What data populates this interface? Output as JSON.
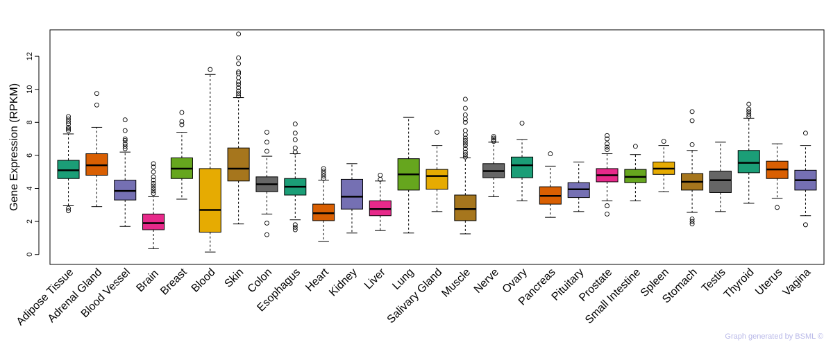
{
  "chart_data": {
    "type": "box",
    "title": "",
    "xlabel": "",
    "ylabel": "Gene Expression (RPKM)",
    "ylim": [
      -0.6,
      13.6
    ],
    "yticks": [
      0,
      2,
      4,
      6,
      8,
      10,
      12
    ],
    "highlight": "Brain",
    "highlight_color": "#ff0000",
    "credit": "Graph generated by BSML ©",
    "categories": [
      "Adipose Tissue",
      "Adrenal Gland",
      "Blood Vessel",
      "Brain",
      "Breast",
      "Blood",
      "Skin",
      "Colon",
      "Esophagus",
      "Heart",
      "Kidney",
      "Liver",
      "Lung",
      "Salivary Gland",
      "Muscle",
      "Nerve",
      "Ovary",
      "Pancreas",
      "Pituitary",
      "Prostate",
      "Small Intestine",
      "Spleen",
      "Stomach",
      "Testis",
      "Thyroid",
      "Uterus",
      "Vagina"
    ],
    "colors": [
      "#1b9e77",
      "#d95f02",
      "#7570b3",
      "#e7298a",
      "#66a61e",
      "#e6ab02",
      "#a6761d",
      "#666666",
      "#1b9e77",
      "#d95f02",
      "#7570b3",
      "#e7298a",
      "#66a61e",
      "#e6ab02",
      "#a6761d",
      "#666666",
      "#1b9e77",
      "#d95f02",
      "#7570b3",
      "#e7298a",
      "#66a61e",
      "#e6ab02",
      "#a6761d",
      "#666666",
      "#1b9e77",
      "#d95f02",
      "#7570b3"
    ],
    "boxes": [
      {
        "whisker_low": 2.95,
        "q1": 4.6,
        "median": 5.1,
        "q3": 5.7,
        "whisker_high": 7.3,
        "outliers": [
          2.65,
          2.8,
          7.5,
          7.6,
          7.7,
          7.9,
          8.05,
          8.2,
          8.35
        ]
      },
      {
        "whisker_low": 2.9,
        "q1": 4.8,
        "median": 5.4,
        "q3": 6.1,
        "whisker_high": 7.7,
        "outliers": [
          9.05,
          9.75
        ]
      },
      {
        "whisker_low": 1.7,
        "q1": 3.3,
        "median": 3.85,
        "q3": 4.5,
        "whisker_high": 6.2,
        "outliers": [
          6.4,
          6.55,
          6.7,
          6.9,
          7.0,
          7.5,
          8.15
        ]
      },
      {
        "whisker_low": 0.35,
        "q1": 1.5,
        "median": 1.9,
        "q3": 2.45,
        "whisker_high": 3.5,
        "outliers": [
          3.7,
          3.85,
          4.0,
          4.15,
          4.3,
          4.5,
          4.7,
          5.0,
          5.3,
          5.5
        ]
      },
      {
        "whisker_low": 3.35,
        "q1": 4.6,
        "median": 5.2,
        "q3": 5.85,
        "whisker_high": 7.4,
        "outliers": [
          7.85,
          8.05,
          8.6
        ]
      },
      {
        "whisker_low": 0.15,
        "q1": 1.35,
        "median": 2.7,
        "q3": 5.2,
        "whisker_high": 10.9,
        "outliers": [
          11.2
        ]
      },
      {
        "whisker_low": 1.85,
        "q1": 4.45,
        "median": 5.2,
        "q3": 6.45,
        "whisker_high": 9.5,
        "outliers": [
          9.6,
          9.75,
          9.9,
          10.1,
          10.3,
          10.45,
          10.7,
          10.95,
          11.05,
          11.55,
          11.9,
          13.35
        ]
      },
      {
        "whisker_low": 2.45,
        "q1": 3.8,
        "median": 4.25,
        "q3": 4.7,
        "whisker_high": 5.95,
        "outliers": [
          1.2,
          1.9,
          6.25,
          6.8,
          7.4
        ]
      },
      {
        "whisker_low": 2.1,
        "q1": 3.6,
        "median": 4.1,
        "q3": 4.6,
        "whisker_high": 6.1,
        "outliers": [
          1.5,
          1.65,
          1.8,
          6.2,
          6.45,
          6.95,
          7.35,
          7.9
        ]
      },
      {
        "whisker_low": 0.8,
        "q1": 2.05,
        "median": 2.5,
        "q3": 3.05,
        "whisker_high": 4.5,
        "outliers": [
          4.6,
          4.75,
          4.9,
          5.05,
          5.2
        ]
      },
      {
        "whisker_low": 1.3,
        "q1": 2.75,
        "median": 3.5,
        "q3": 4.55,
        "whisker_high": 5.5,
        "outliers": []
      },
      {
        "whisker_low": 1.45,
        "q1": 2.35,
        "median": 2.75,
        "q3": 3.25,
        "whisker_high": 4.45,
        "outliers": [
          4.55,
          4.8
        ]
      },
      {
        "whisker_low": 1.3,
        "q1": 3.9,
        "median": 4.85,
        "q3": 5.8,
        "whisker_high": 8.3,
        "outliers": []
      },
      {
        "whisker_low": 2.6,
        "q1": 3.95,
        "median": 4.75,
        "q3": 5.15,
        "whisker_high": 6.6,
        "outliers": [
          7.4
        ]
      },
      {
        "whisker_low": 1.25,
        "q1": 2.05,
        "median": 2.75,
        "q3": 3.6,
        "whisker_high": 5.85,
        "outliers": [
          5.9,
          6.05,
          6.2,
          6.4,
          6.6,
          6.75,
          6.9,
          7.05,
          7.25,
          7.5,
          8.0,
          8.2,
          8.45,
          8.85,
          9.4
        ]
      },
      {
        "whisker_low": 3.5,
        "q1": 4.65,
        "median": 5.05,
        "q3": 5.5,
        "whisker_high": 6.8,
        "outliers": [
          6.85,
          6.95,
          7.05,
          7.15
        ]
      },
      {
        "whisker_low": 3.25,
        "q1": 4.65,
        "median": 5.4,
        "q3": 5.9,
        "whisker_high": 6.95,
        "outliers": [
          7.95
        ]
      },
      {
        "whisker_low": 2.25,
        "q1": 3.05,
        "median": 3.55,
        "q3": 4.1,
        "whisker_high": 5.35,
        "outliers": [
          6.1
        ]
      },
      {
        "whisker_low": 2.6,
        "q1": 3.45,
        "median": 3.95,
        "q3": 4.35,
        "whisker_high": 5.6,
        "outliers": []
      },
      {
        "whisker_low": 3.25,
        "q1": 4.4,
        "median": 4.8,
        "q3": 5.2,
        "whisker_high": 6.1,
        "outliers": [
          2.45,
          2.95,
          6.35,
          6.5,
          6.7,
          7.0,
          7.2
        ]
      },
      {
        "whisker_low": 3.25,
        "q1": 4.35,
        "median": 4.7,
        "q3": 5.15,
        "whisker_high": 6.05,
        "outliers": [
          6.55
        ]
      },
      {
        "whisker_low": 3.8,
        "q1": 4.85,
        "median": 5.2,
        "q3": 5.6,
        "whisker_high": 6.6,
        "outliers": [
          6.85
        ]
      },
      {
        "whisker_low": 2.55,
        "q1": 3.9,
        "median": 4.4,
        "q3": 4.9,
        "whisker_high": 6.3,
        "outliers": [
          1.85,
          2.0,
          2.15,
          6.65,
          8.1,
          8.65
        ]
      },
      {
        "whisker_low": 2.6,
        "q1": 3.75,
        "median": 4.5,
        "q3": 5.05,
        "whisker_high": 6.8,
        "outliers": []
      },
      {
        "whisker_low": 3.1,
        "q1": 4.95,
        "median": 5.55,
        "q3": 6.3,
        "whisker_high": 8.25,
        "outliers": [
          8.35,
          8.5,
          8.65,
          8.8,
          9.1
        ]
      },
      {
        "whisker_low": 3.4,
        "q1": 4.6,
        "median": 5.15,
        "q3": 5.65,
        "whisker_high": 6.7,
        "outliers": [
          2.85
        ]
      },
      {
        "whisker_low": 2.35,
        "q1": 3.9,
        "median": 4.5,
        "q3": 5.1,
        "whisker_high": 6.6,
        "outliers": [
          1.8,
          7.35
        ]
      }
    ]
  }
}
